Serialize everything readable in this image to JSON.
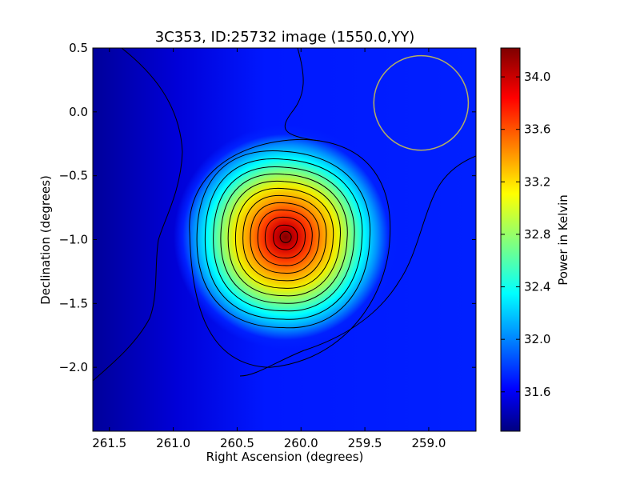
{
  "chart_data": {
    "type": "heatmap",
    "title": "3C353, ID:25732 image (1550.0,YY)",
    "xlabel": "Right Ascension (degrees)",
    "ylabel": "Declination (degrees)",
    "xlim": [
      261.63,
      258.63
    ],
    "ylim": [
      -2.5,
      0.5
    ],
    "x_reversed": true,
    "x_ticks": [
      261.5,
      261.0,
      260.5,
      260.0,
      259.5,
      259.0
    ],
    "x_tick_labels": [
      "261.5",
      "261.0",
      "260.5",
      "260.0",
      "259.5",
      "259.0"
    ],
    "y_ticks": [
      0.5,
      0.0,
      -0.5,
      -1.0,
      -1.5,
      -2.0
    ],
    "y_tick_labels": [
      "0.5",
      "0.0",
      "−0.5",
      "−1.0",
      "−1.5",
      "−2.0"
    ],
    "colormap": "jet",
    "colorbar": {
      "label": "Power in Kelvin",
      "range": [
        31.3,
        34.22
      ],
      "ticks": [
        31.6,
        32.0,
        32.4,
        32.8,
        33.2,
        33.6,
        34.0
      ],
      "tick_labels": [
        "31.6",
        "32.0",
        "32.4",
        "32.8",
        "33.2",
        "33.6",
        "34.0"
      ]
    },
    "source": {
      "ra": 260.12,
      "dec": -0.98,
      "peak_kelvin": 34.2,
      "background_kelvin": 31.72,
      "contour_color": "#000000"
    },
    "beam_ellipse": {
      "ra_center": 259.06,
      "dec_center": 0.07,
      "radius_deg": 0.37,
      "color": "#b5b060"
    },
    "grid": false
  }
}
